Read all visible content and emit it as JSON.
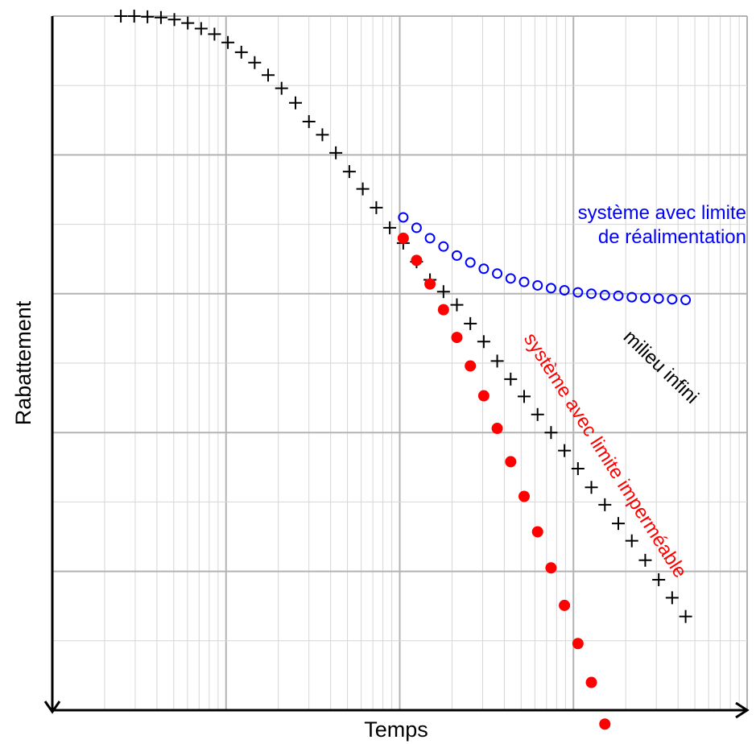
{
  "chart_data": {
    "type": "scatter",
    "title": "",
    "xlabel": "Temps",
    "ylabel": "Rabattement",
    "x_scale": "log",
    "y_scale": "linear",
    "x_decades": 4,
    "xlim": [
      1,
      10000
    ],
    "ylim": [
      0,
      10
    ],
    "y_direction": "down",
    "grid": true,
    "legend": "none",
    "tick_labels_shown": false,
    "series": [
      {
        "marker": "cross",
        "color": "#000000",
        "points": [
          [
            2.48,
            0.0
          ],
          [
            2.96,
            0.0
          ],
          [
            3.53,
            0.01
          ],
          [
            4.22,
            0.02
          ],
          [
            5.04,
            0.05
          ],
          [
            6.02,
            0.1
          ],
          [
            7.19,
            0.18
          ],
          [
            8.58,
            0.26
          ],
          [
            10.25,
            0.38
          ],
          [
            12.25,
            0.52
          ],
          [
            14.62,
            0.67
          ],
          [
            17.47,
            0.85
          ],
          [
            20.88,
            1.04
          ],
          [
            25.11,
            1.25
          ],
          [
            30.01,
            1.52
          ],
          [
            35.87,
            1.71
          ],
          [
            42.87,
            1.97
          ],
          [
            51.26,
            2.24
          ],
          [
            61.27,
            2.49
          ],
          [
            73.31,
            2.76
          ],
          [
            87.62,
            3.05
          ],
          [
            104.77,
            3.27
          ],
          [
            125.01,
            3.54
          ],
          [
            149.35,
            3.8
          ],
          [
            178.59,
            3.97
          ],
          [
            213.27,
            4.16
          ],
          [
            254.92,
            4.43
          ],
          [
            304.64,
            4.69
          ],
          [
            364.06,
            4.97
          ],
          [
            435.14,
            5.23
          ],
          [
            520.14,
            5.48
          ],
          [
            621.69,
            5.74
          ],
          [
            743.09,
            6.0
          ],
          [
            887.86,
            6.26
          ],
          [
            1061.5,
            6.52
          ],
          [
            1268.4,
            6.79
          ],
          [
            1516.7,
            7.04
          ],
          [
            1813.2,
            7.31
          ],
          [
            2167.4,
            7.56
          ],
          [
            2590.2,
            7.84
          ],
          [
            3097.2,
            8.12
          ],
          [
            3700.8,
            8.38
          ],
          [
            4424.1,
            8.65
          ]
        ]
      },
      {
        "marker": "open-circle",
        "color": "#0000ff",
        "points": [
          [
            104.77,
            2.9
          ],
          [
            125.01,
            3.05
          ],
          [
            149.35,
            3.2
          ],
          [
            178.59,
            3.32
          ],
          [
            213.27,
            3.45
          ],
          [
            254.92,
            3.55
          ],
          [
            304.64,
            3.64
          ],
          [
            364.06,
            3.71
          ],
          [
            435.14,
            3.78
          ],
          [
            520.14,
            3.83
          ],
          [
            621.69,
            3.88
          ],
          [
            743.09,
            3.92
          ],
          [
            887.86,
            3.95
          ],
          [
            1061.5,
            3.98
          ],
          [
            1268.4,
            4.0
          ],
          [
            1516.7,
            4.02
          ],
          [
            1813.2,
            4.03
          ],
          [
            2167.4,
            4.05
          ],
          [
            2590.2,
            4.06
          ],
          [
            3097.2,
            4.07
          ],
          [
            3700.8,
            4.08
          ],
          [
            4424.1,
            4.09
          ]
        ]
      },
      {
        "marker": "filled-circle",
        "color": "#ff0000",
        "points": [
          [
            104.77,
            3.2
          ],
          [
            125.01,
            3.52
          ],
          [
            149.35,
            3.86
          ],
          [
            178.59,
            4.23
          ],
          [
            213.27,
            4.63
          ],
          [
            254.92,
            5.04
          ],
          [
            304.64,
            5.47
          ],
          [
            364.06,
            5.94
          ],
          [
            435.14,
            6.42
          ],
          [
            520.14,
            6.92
          ],
          [
            621.69,
            7.43
          ],
          [
            743.09,
            7.95
          ],
          [
            887.86,
            8.49
          ],
          [
            1061.5,
            9.04
          ],
          [
            1268.4,
            9.6
          ],
          [
            1516.7,
            10.2
          ]
        ]
      }
    ],
    "annotations": [
      {
        "text": "système avec limite",
        "color": "#0000ff"
      },
      {
        "text": "de réalimentation",
        "color": "#0000ff"
      },
      {
        "text": "milieu infini",
        "color": "#000000"
      },
      {
        "text": "système avec limite imperméable",
        "color": "#ff0000"
      }
    ]
  }
}
